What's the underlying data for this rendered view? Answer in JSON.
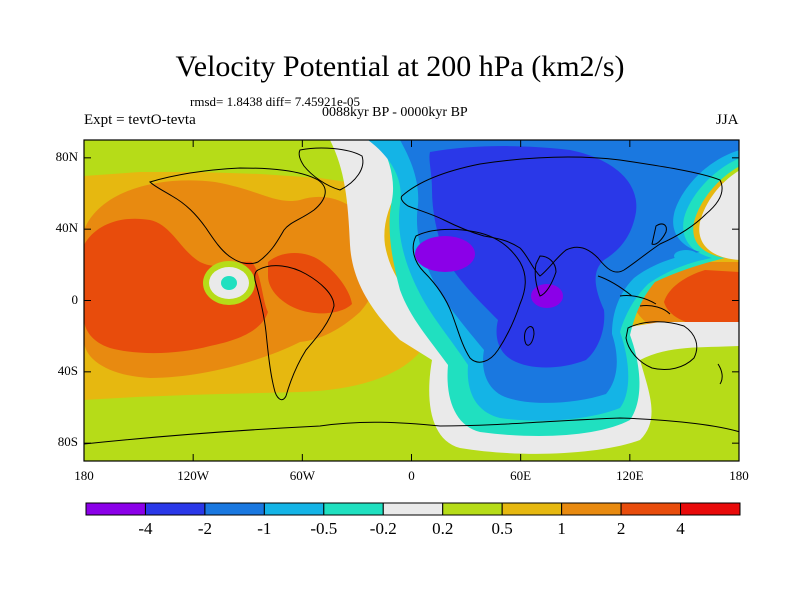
{
  "title": "Velocity Potential at 200 hPa (km2/s)",
  "stats": "rmsd= 1.8438 diff= 7.45921e-05",
  "period": "0088kyr BP - 0000kyr BP",
  "experiment": "Expt = tevtO-tevta",
  "season": "JJA",
  "lon_ticks": [
    "180",
    "120W",
    "60W",
    "0",
    "60E",
    "120E",
    "180"
  ],
  "lat_ticks": [
    "80N",
    "40N",
    "0",
    "40S",
    "80S"
  ],
  "colorbar": {
    "labels": [
      "-4",
      "-2",
      "-1",
      "-0.5",
      "-0.2",
      "0.2",
      "0.5",
      "1",
      "2",
      "4"
    ],
    "colors": [
      "#8b00e8",
      "#2a38e8",
      "#1a78e0",
      "#14b4e6",
      "#20e0c0",
      "#eaeaea",
      "#b6dc18",
      "#e6b810",
      "#e88a10",
      "#e84c0c",
      "#e80a0a"
    ]
  },
  "palette": {
    "v_m4": "#8b00e8",
    "v_m2": "#2a38e8",
    "v_m1": "#1a78e0",
    "v_m05": "#14b4e6",
    "v_m02": "#20e0c0",
    "v_0": "#eaeaea",
    "v_02": "#b6dc18",
    "v_05": "#e6b810",
    "v_1": "#e88a10",
    "v_2": "#e84c0c"
  }
}
